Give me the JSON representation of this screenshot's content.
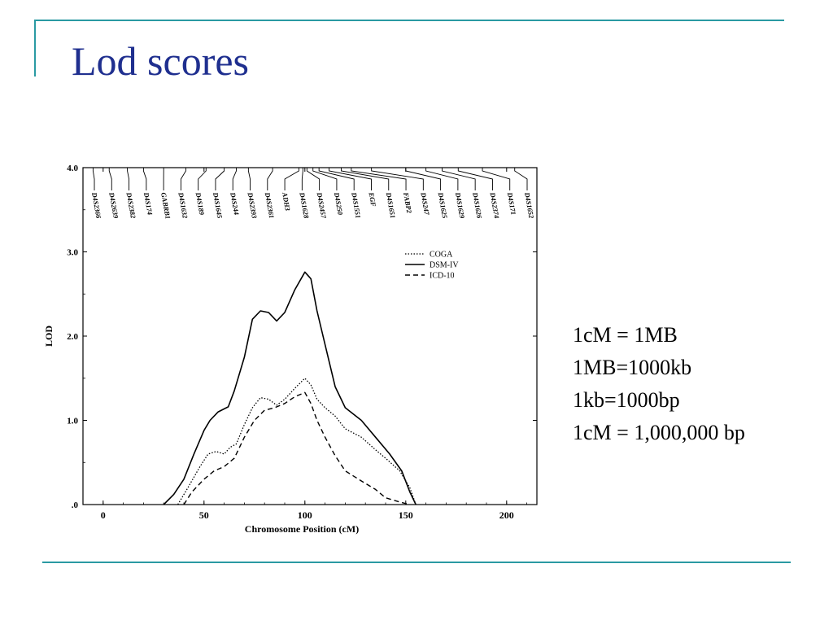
{
  "slide": {
    "title": "Lod scores",
    "notes": [
      "1cM = 1MB",
      "1MB=1000kb",
      "1kb=1000bp",
      "1cM = 1,000,000 bp"
    ]
  },
  "colors": {
    "title": "#1f2f8f",
    "rule": "#2a9aa3",
    "ink": "#000000"
  },
  "chart_data": {
    "type": "line",
    "xlabel": "Chromosome Position (cM)",
    "ylabel": "LOD",
    "xlim": [
      -10,
      215
    ],
    "ylim": [
      0,
      4.0
    ],
    "x_ticks": [
      0,
      50,
      100,
      150,
      200
    ],
    "x_tick_labels": [
      "0",
      "50",
      "100",
      "150",
      "200"
    ],
    "y_ticks": [
      0,
      1.0,
      2.0,
      3.0,
      4.0
    ],
    "y_tick_labels": [
      ".0",
      "1.0",
      "2.0",
      "3.0",
      "4.0"
    ],
    "legend_position": "top-right",
    "markers": [
      {
        "name": "D4S2366",
        "pos": -5
      },
      {
        "name": "D4S2639",
        "pos": 3
      },
      {
        "name": "D4S2382",
        "pos": 12
      },
      {
        "name": "D4S174",
        "pos": 20
      },
      {
        "name": "GABRB1",
        "pos": 30
      },
      {
        "name": "D4S1632",
        "pos": 41
      },
      {
        "name": "D4S189",
        "pos": 51
      },
      {
        "name": "D4S1645",
        "pos": 60
      },
      {
        "name": "D4S244",
        "pos": 66
      },
      {
        "name": "D4S2393",
        "pos": 72
      },
      {
        "name": "D4S2361",
        "pos": 84
      },
      {
        "name": "ADH3",
        "pos": 97
      },
      {
        "name": "D4S1628",
        "pos": 99
      },
      {
        "name": "D4S2457",
        "pos": 101
      },
      {
        "name": "D4S250",
        "pos": 104
      },
      {
        "name": "D4S1551",
        "pos": 107
      },
      {
        "name": "EGF",
        "pos": 112
      },
      {
        "name": "D4S1651",
        "pos": 118
      },
      {
        "name": "FABP2",
        "pos": 123
      },
      {
        "name": "D4S247",
        "pos": 133
      },
      {
        "name": "D4S1625",
        "pos": 150
      },
      {
        "name": "D4S1629",
        "pos": 160
      },
      {
        "name": "D4S1626",
        "pos": 168
      },
      {
        "name": "D4S2374",
        "pos": 176
      },
      {
        "name": "D4S171",
        "pos": 188
      },
      {
        "name": "D4S1652",
        "pos": 204
      }
    ],
    "series": [
      {
        "name": "COGA",
        "dash": "dotted",
        "points": [
          [
            37,
            0
          ],
          [
            42,
            0.2
          ],
          [
            48,
            0.45
          ],
          [
            52,
            0.6
          ],
          [
            56,
            0.63
          ],
          [
            60,
            0.6
          ],
          [
            63,
            0.68
          ],
          [
            66,
            0.72
          ],
          [
            70,
            0.95
          ],
          [
            74,
            1.15
          ],
          [
            78,
            1.27
          ],
          [
            82,
            1.25
          ],
          [
            86,
            1.18
          ],
          [
            90,
            1.25
          ],
          [
            95,
            1.38
          ],
          [
            100,
            1.5
          ],
          [
            103,
            1.42
          ],
          [
            106,
            1.25
          ],
          [
            110,
            1.15
          ],
          [
            115,
            1.05
          ],
          [
            120,
            0.9
          ],
          [
            128,
            0.8
          ],
          [
            135,
            0.65
          ],
          [
            140,
            0.55
          ],
          [
            147,
            0.4
          ],
          [
            152,
            0.2
          ],
          [
            155,
            0
          ]
        ]
      },
      {
        "name": "DSM-IV",
        "dash": "solid",
        "points": [
          [
            30,
            0
          ],
          [
            35,
            0.12
          ],
          [
            40,
            0.3
          ],
          [
            45,
            0.6
          ],
          [
            50,
            0.88
          ],
          [
            53,
            1.0
          ],
          [
            57,
            1.1
          ],
          [
            62,
            1.16
          ],
          [
            65,
            1.35
          ],
          [
            70,
            1.75
          ],
          [
            74,
            2.2
          ],
          [
            78,
            2.3
          ],
          [
            82,
            2.28
          ],
          [
            86,
            2.18
          ],
          [
            90,
            2.28
          ],
          [
            95,
            2.55
          ],
          [
            100,
            2.76
          ],
          [
            103,
            2.68
          ],
          [
            106,
            2.3
          ],
          [
            110,
            1.9
          ],
          [
            115,
            1.4
          ],
          [
            120,
            1.15
          ],
          [
            128,
            1.0
          ],
          [
            135,
            0.8
          ],
          [
            142,
            0.6
          ],
          [
            148,
            0.4
          ],
          [
            152,
            0.15
          ],
          [
            155,
            0
          ]
        ]
      },
      {
        "name": "ICD-10",
        "dash": "dashed",
        "points": [
          [
            40,
            0
          ],
          [
            44,
            0.15
          ],
          [
            50,
            0.3
          ],
          [
            55,
            0.4
          ],
          [
            60,
            0.45
          ],
          [
            65,
            0.55
          ],
          [
            70,
            0.8
          ],
          [
            75,
            1.0
          ],
          [
            80,
            1.12
          ],
          [
            85,
            1.15
          ],
          [
            90,
            1.2
          ],
          [
            95,
            1.28
          ],
          [
            100,
            1.33
          ],
          [
            103,
            1.2
          ],
          [
            106,
            1.0
          ],
          [
            110,
            0.8
          ],
          [
            115,
            0.58
          ],
          [
            120,
            0.4
          ],
          [
            128,
            0.28
          ],
          [
            135,
            0.18
          ],
          [
            140,
            0.08
          ],
          [
            147,
            0.03
          ],
          [
            152,
            0
          ]
        ]
      }
    ]
  }
}
